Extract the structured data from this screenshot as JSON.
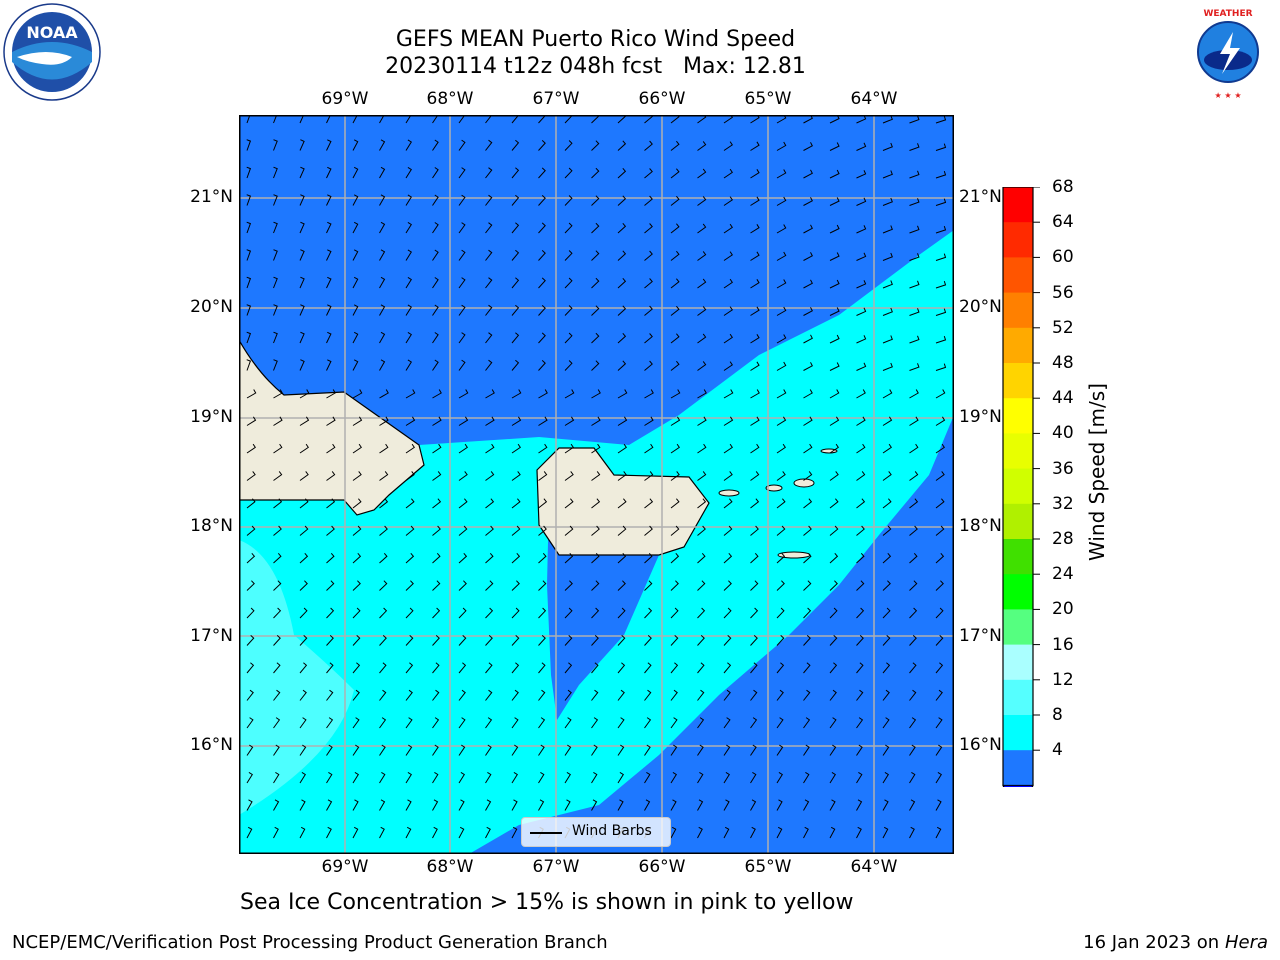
{
  "title": {
    "line1": "GEFS MEAN Puerto Rico Wind Speed",
    "line2": "20230114 t12z 048h fcst   Max: 12.81"
  },
  "map": {
    "lon_labels": [
      "69°W",
      "68°W",
      "67°W",
      "66°W",
      "65°W",
      "64°W"
    ],
    "lat_labels": [
      "21°N",
      "20°N",
      "19°N",
      "18°N",
      "17°N",
      "16°N"
    ],
    "colors": {
      "ocean_4_8": "#1e78ff",
      "ocean_8_12": "#00ffff",
      "ocean_12_16": "#4dffff",
      "land": "#efecdc",
      "grid": "#b0b0b0"
    }
  },
  "legend": {
    "label": "Wind Barbs"
  },
  "colorbar": {
    "label": "Wind Speed [m/s]",
    "ticks": [
      "68",
      "64",
      "60",
      "56",
      "52",
      "48",
      "44",
      "40",
      "36",
      "32",
      "28",
      "24",
      "20",
      "16",
      "12",
      "8",
      "4"
    ],
    "colors": [
      "#ff0000",
      "#ff2a00",
      "#ff5500",
      "#ff8000",
      "#ffaa00",
      "#ffd400",
      "#ffff00",
      "#e8ff00",
      "#d0ff00",
      "#b0f000",
      "#40e000",
      "#00ff00",
      "#55ff80",
      "#aaffff",
      "#55ffff",
      "#00ffff",
      "#1e78ff"
    ],
    "extend_color": "#0000ff"
  },
  "note": "Sea Ice Concentration > 15% is shown in pink to yellow",
  "footer": {
    "left": "NCEP/EMC/Verification Post Processing Product Generation Branch",
    "right_prefix": "16 Jan 2023 on ",
    "right_machine": "Hera"
  },
  "logos": {
    "left": "NOAA",
    "right": "NATIONAL WEATHER SERVICE"
  }
}
